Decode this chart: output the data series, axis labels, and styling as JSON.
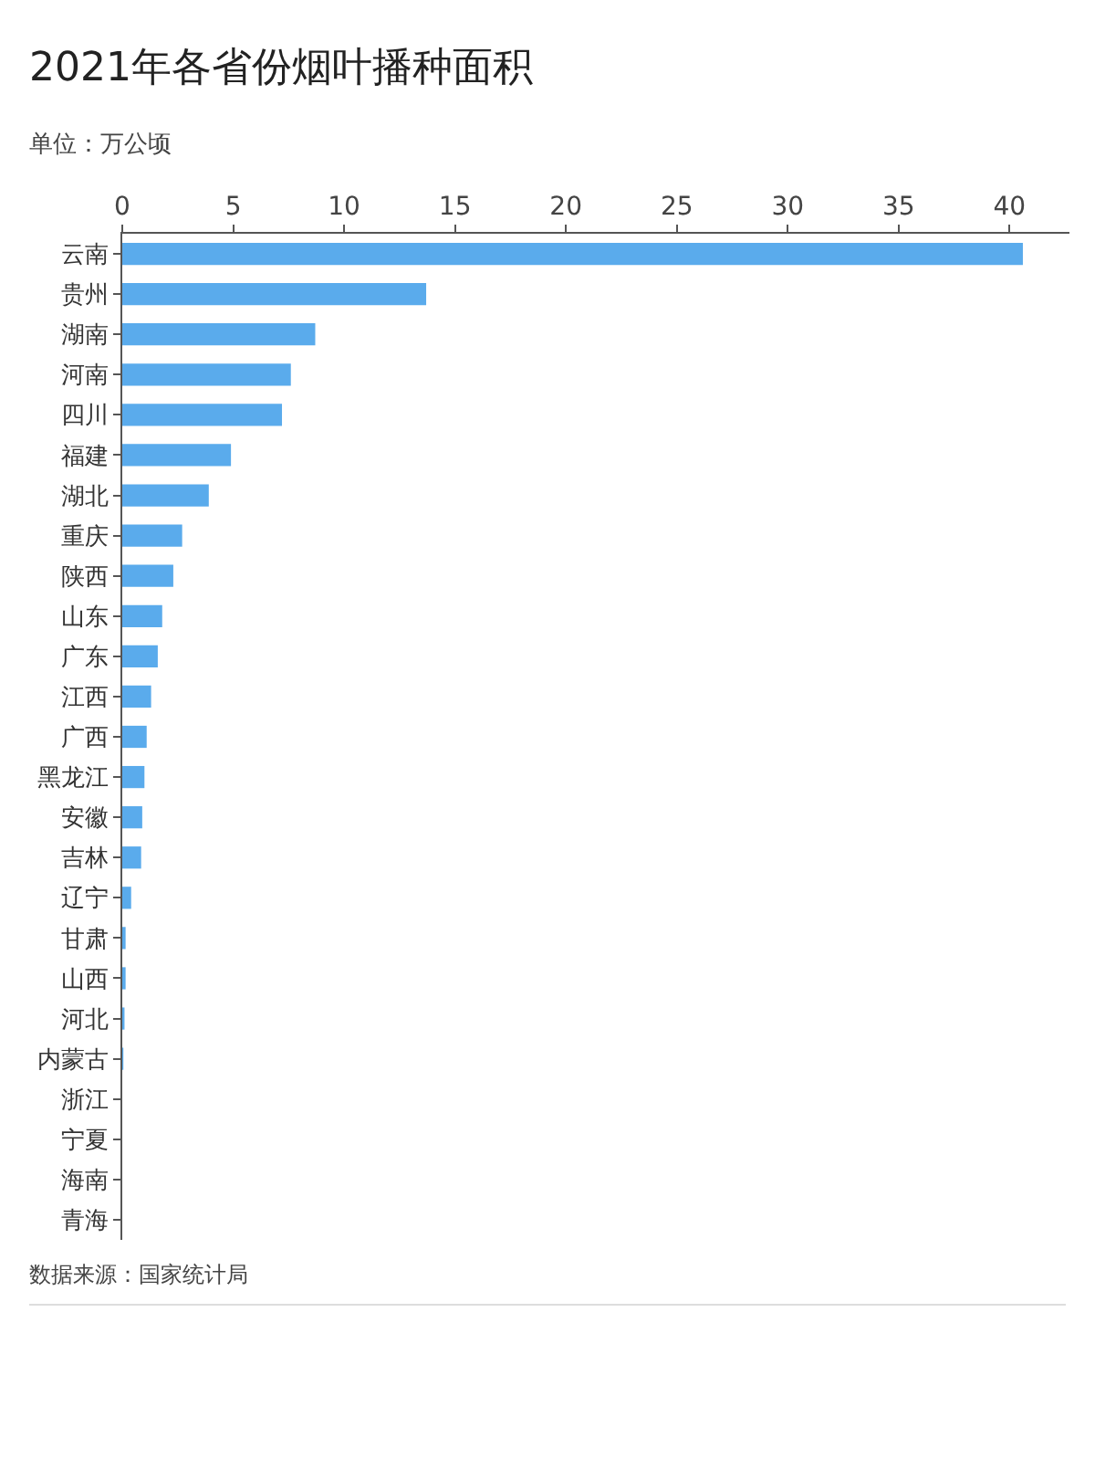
{
  "chart_data": {
    "type": "bar",
    "orientation": "horizontal",
    "title": "2021年各省份烟叶播种面积",
    "subtitle": "单位：万公顷",
    "categories": [
      "云南",
      "贵州",
      "湖南",
      "河南",
      "四川",
      "福建",
      "湖北",
      "重庆",
      "陕西",
      "山东",
      "广东",
      "江西",
      "广西",
      "黑龙江",
      "安徽",
      "吉林",
      "辽宁",
      "甘肃",
      "山西",
      "河北",
      "内蒙古",
      "浙江",
      "宁夏",
      "海南",
      "青海"
    ],
    "values": [
      40.6,
      13.7,
      8.7,
      7.6,
      7.2,
      4.9,
      3.9,
      2.7,
      2.3,
      1.8,
      1.6,
      1.3,
      1.1,
      1.0,
      0.9,
      0.85,
      0.4,
      0.15,
      0.15,
      0.1,
      0.05,
      0,
      0,
      0,
      0
    ],
    "color": "#5aabec",
    "xlim": [
      0,
      42.7
    ],
    "xticks": [
      0,
      5,
      10,
      15,
      20,
      25,
      30,
      35,
      40
    ],
    "grid": false,
    "legend": false,
    "annotations": [
      "数据来源：国家统计局"
    ]
  }
}
